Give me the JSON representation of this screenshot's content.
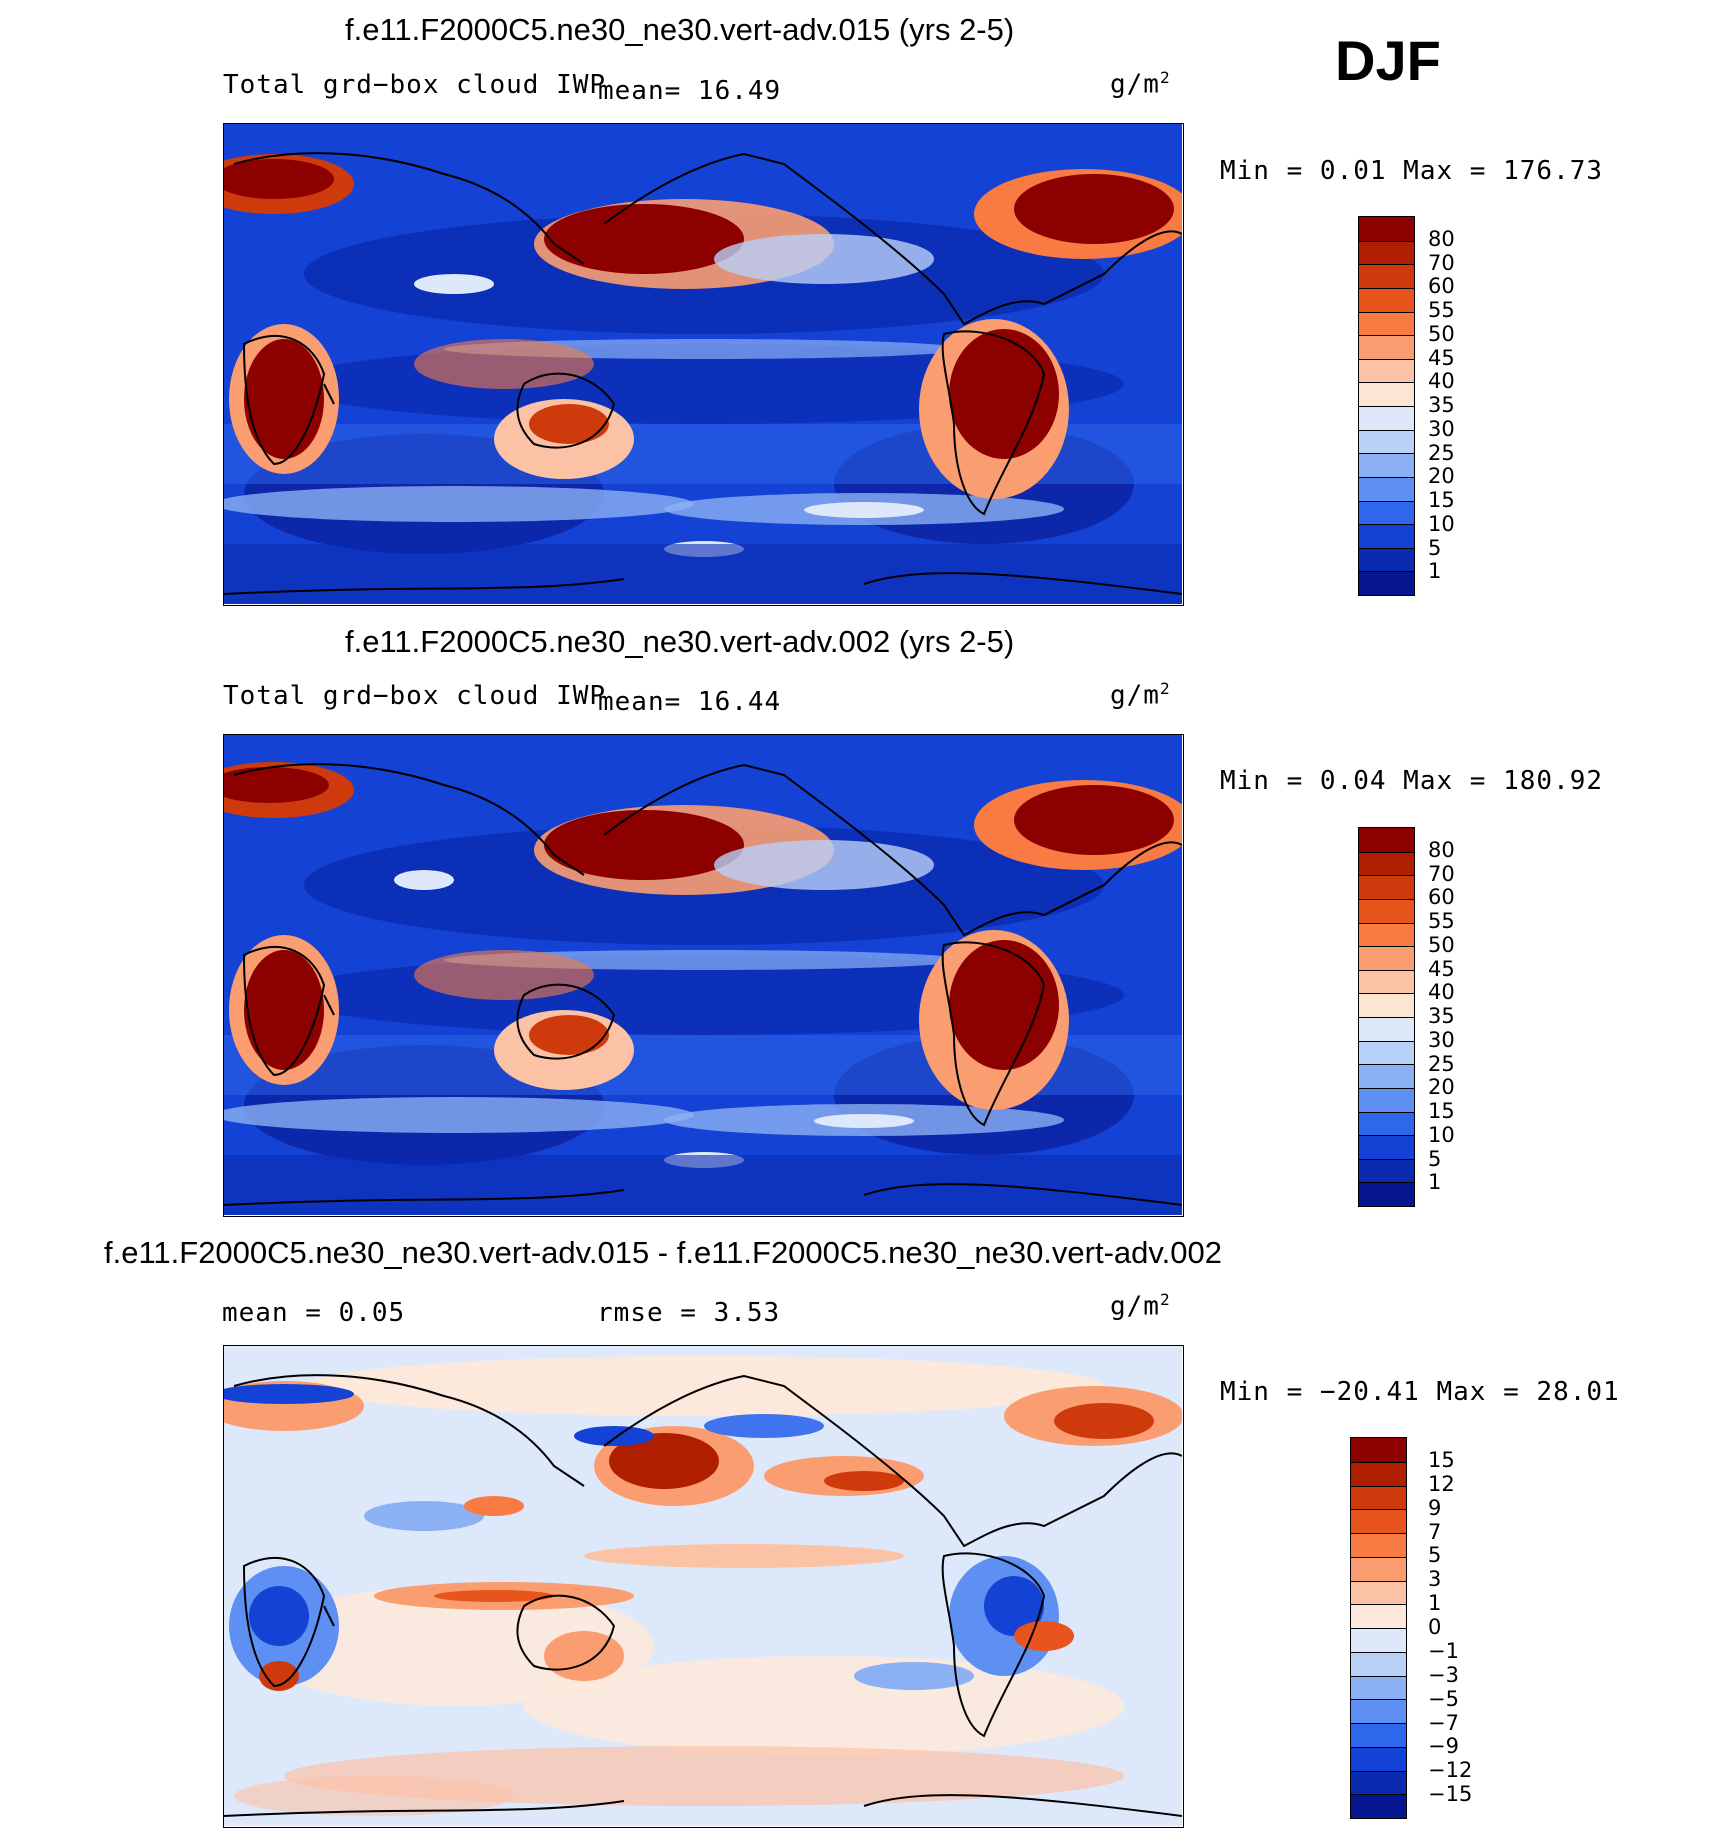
{
  "season": "DJF",
  "panels": [
    {
      "title": "f.e11.F2000C5.ne30_ne30.vert-adv.015 (yrs 2-5)",
      "variable": "Total grd−box cloud IWP",
      "stat_text": "mean=   16.49",
      "unit": "g/m",
      "unit_power": "2",
      "minmax": "Min =    0.01  Max = 176.73",
      "levels": [
        "80",
        "70",
        "60",
        "55",
        "50",
        "45",
        "40",
        "35",
        "30",
        "25",
        "20",
        "15",
        "10",
        "5",
        "1"
      ],
      "colors": [
        "#8c0000",
        "#b01e00",
        "#cf3a0c",
        "#e8551c",
        "#f77b43",
        "#fa9d70",
        "#fcc2a6",
        "#fde5d3",
        "#dde9fb",
        "#b9d0f7",
        "#8bb0f3",
        "#5e8ff2",
        "#2e67ec",
        "#1442d4",
        "#0a2ab0",
        "#06168e"
      ]
    },
    {
      "title": "f.e11.F2000C5.ne30_ne30.vert-adv.002 (yrs 2-5)",
      "variable": "Total grd−box cloud IWP",
      "stat_text": "mean=   16.44",
      "unit": "g/m",
      "unit_power": "2",
      "minmax": "Min =    0.04  Max = 180.92",
      "levels": [
        "80",
        "70",
        "60",
        "55",
        "50",
        "45",
        "40",
        "35",
        "30",
        "25",
        "20",
        "15",
        "10",
        "5",
        "1"
      ],
      "colors": [
        "#8c0000",
        "#b01e00",
        "#cf3a0c",
        "#e8551c",
        "#f77b43",
        "#fa9d70",
        "#fcc2a6",
        "#fde5d3",
        "#dde9fb",
        "#b9d0f7",
        "#8bb0f3",
        "#5e8ff2",
        "#2e67ec",
        "#1442d4",
        "#0a2ab0",
        "#06168e"
      ]
    },
    {
      "title": "f.e11.F2000C5.ne30_ne30.vert-adv.015 - f.e11.F2000C5.ne30_ne30.vert-adv.002",
      "variable": "",
      "stat_text": "mean =    0.05",
      "stat_text2": "rmse =    3.53",
      "unit": "g/m",
      "unit_power": "2",
      "minmax": "Min = −20.41  Max =   28.01",
      "levels": [
        "15",
        "12",
        "9",
        "7",
        "5",
        "3",
        "1",
        "0",
        "−1",
        "−3",
        "−5",
        "−7",
        "−9",
        "−12",
        "−15"
      ],
      "colors": [
        "#8c0000",
        "#b01e00",
        "#cf3a0c",
        "#e8551c",
        "#f77b43",
        "#fa9d70",
        "#fcc2a6",
        "#fde9db",
        "#dde9fb",
        "#b9d0f7",
        "#8bb0f3",
        "#5e8ff2",
        "#2e67ec",
        "#1442d4",
        "#0a2ab0",
        "#06168e"
      ]
    }
  ]
}
